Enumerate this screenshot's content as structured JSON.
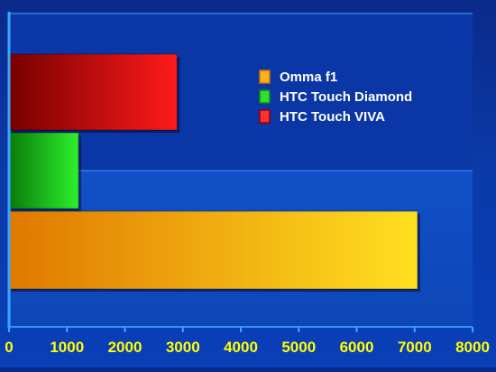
{
  "chart_data": {
    "type": "bar",
    "orientation": "horizontal",
    "title": "",
    "xlabel": "",
    "ylabel": "",
    "xlim": [
      0,
      8000
    ],
    "x_ticks": [
      0,
      1000,
      2000,
      3000,
      4000,
      5000,
      6000,
      7000,
      8000
    ],
    "grid": "horizontal lines",
    "legend_position": "top-right",
    "series": [
      {
        "name": "Omma f1",
        "value": 7050,
        "color": "#f5a400"
      },
      {
        "name": "HTC Touch Diamond",
        "value": 1200,
        "color": "#1fd01f"
      },
      {
        "name": "HTC Touch VIVA",
        "value": 2900,
        "color": "#e01010"
      }
    ]
  }
}
